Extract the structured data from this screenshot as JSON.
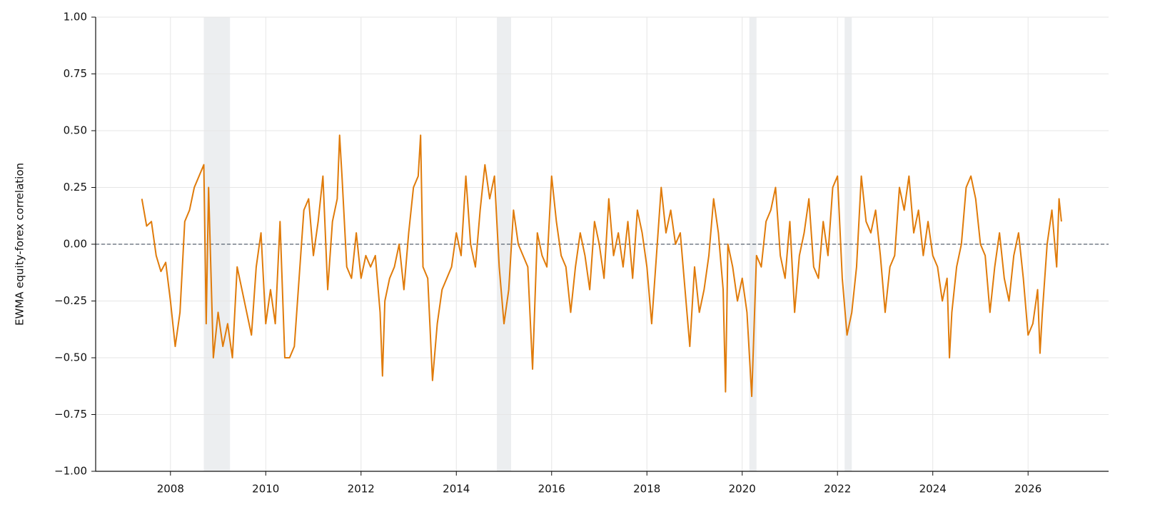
{
  "chart_data": {
    "type": "line",
    "ylabel": "EWMA equity-forex correlation",
    "xlim": [
      2006.43,
      2027.69
    ],
    "ylim": [
      -1,
      1
    ],
    "xticks": [
      2008,
      2010,
      2012,
      2014,
      2016,
      2018,
      2020,
      2022,
      2024,
      2026
    ],
    "yticks": [
      {
        "value": -1,
        "label": "−1.00"
      },
      {
        "value": -0.75,
        "label": "−0.75"
      },
      {
        "value": -0.5,
        "label": "−0.50"
      },
      {
        "value": -0.25,
        "label": "−0.25"
      },
      {
        "value": 0,
        "label": "0.00"
      },
      {
        "value": 0.25,
        "label": "0.25"
      },
      {
        "value": 0.5,
        "label": "0.50"
      },
      {
        "value": 0.75,
        "label": "0.75"
      },
      {
        "value": 1,
        "label": "1.00"
      }
    ],
    "grid": true,
    "reference_line": 0,
    "shaded_spans": [
      [
        2008.7,
        2009.25
      ],
      [
        2014.85,
        2015.15
      ],
      [
        2020.15,
        2020.3
      ],
      [
        2022.15,
        2022.3
      ]
    ],
    "series": [
      {
        "color": "#e07b0a",
        "x": [
          2007.4,
          2007.5,
          2007.6,
          2007.7,
          2007.8,
          2007.9,
          2008.0,
          2008.1,
          2008.2,
          2008.3,
          2008.4,
          2008.5,
          2008.6,
          2008.7,
          2008.75,
          2008.8,
          2008.9,
          2009.0,
          2009.1,
          2009.2,
          2009.3,
          2009.4,
          2009.5,
          2009.6,
          2009.7,
          2009.8,
          2009.9,
          2010.0,
          2010.1,
          2010.2,
          2010.3,
          2010.4,
          2010.5,
          2010.6,
          2010.7,
          2010.8,
          2010.9,
          2011.0,
          2011.1,
          2011.2,
          2011.3,
          2011.4,
          2011.5,
          2011.55,
          2011.6,
          2011.7,
          2011.8,
          2011.9,
          2012.0,
          2012.1,
          2012.2,
          2012.3,
          2012.4,
          2012.45,
          2012.5,
          2012.6,
          2012.7,
          2012.8,
          2012.9,
          2013.0,
          2013.1,
          2013.2,
          2013.25,
          2013.3,
          2013.4,
          2013.5,
          2013.6,
          2013.7,
          2013.8,
          2013.9,
          2014.0,
          2014.1,
          2014.2,
          2014.3,
          2014.4,
          2014.5,
          2014.6,
          2014.7,
          2014.8,
          2014.9,
          2015.0,
          2015.1,
          2015.2,
          2015.3,
          2015.4,
          2015.5,
          2015.6,
          2015.7,
          2015.8,
          2015.9,
          2016.0,
          2016.1,
          2016.2,
          2016.3,
          2016.4,
          2016.5,
          2016.6,
          2016.7,
          2016.8,
          2016.9,
          2017.0,
          2017.1,
          2017.2,
          2017.3,
          2017.4,
          2017.5,
          2017.6,
          2017.7,
          2017.8,
          2017.9,
          2018.0,
          2018.1,
          2018.2,
          2018.3,
          2018.4,
          2018.5,
          2018.6,
          2018.7,
          2018.8,
          2018.9,
          2019.0,
          2019.1,
          2019.2,
          2019.3,
          2019.4,
          2019.5,
          2019.6,
          2019.65,
          2019.7,
          2019.8,
          2019.9,
          2020.0,
          2020.1,
          2020.2,
          2020.3,
          2020.4,
          2020.5,
          2020.6,
          2020.7,
          2020.8,
          2020.9,
          2021.0,
          2021.1,
          2021.2,
          2021.3,
          2021.4,
          2021.5,
          2021.6,
          2021.7,
          2021.8,
          2021.9,
          2022.0,
          2022.1,
          2022.2,
          2022.3,
          2022.4,
          2022.5,
          2022.6,
          2022.7,
          2022.8,
          2022.9,
          2023.0,
          2023.1,
          2023.2,
          2023.3,
          2023.4,
          2023.5,
          2023.6,
          2023.7,
          2023.8,
          2023.9,
          2024.0,
          2024.1,
          2024.2,
          2024.3,
          2024.35,
          2024.4,
          2024.5,
          2024.6,
          2024.7,
          2024.8,
          2024.9,
          2025.0,
          2025.1,
          2025.2,
          2025.3,
          2025.4,
          2025.5,
          2025.6,
          2025.7,
          2025.8,
          2025.9,
          2026.0,
          2026.1,
          2026.2,
          2026.25,
          2026.3,
          2026.4,
          2026.5,
          2026.6,
          2026.65,
          2026.7
        ],
        "values": [
          0.2,
          0.08,
          0.1,
          -0.05,
          -0.12,
          -0.08,
          -0.25,
          -0.45,
          -0.3,
          0.1,
          0.15,
          0.25,
          0.3,
          0.35,
          -0.35,
          0.25,
          -0.5,
          -0.3,
          -0.45,
          -0.35,
          -0.5,
          -0.1,
          -0.2,
          -0.3,
          -0.4,
          -0.1,
          0.05,
          -0.35,
          -0.2,
          -0.35,
          0.1,
          -0.5,
          -0.5,
          -0.45,
          -0.15,
          0.15,
          0.2,
          -0.05,
          0.1,
          0.3,
          -0.2,
          0.1,
          0.2,
          0.48,
          0.3,
          -0.1,
          -0.15,
          0.05,
          -0.15,
          -0.05,
          -0.1,
          -0.05,
          -0.3,
          -0.58,
          -0.25,
          -0.15,
          -0.1,
          0.0,
          -0.2,
          0.05,
          0.25,
          0.3,
          0.48,
          -0.1,
          -0.15,
          -0.6,
          -0.35,
          -0.2,
          -0.15,
          -0.1,
          0.05,
          -0.05,
          0.3,
          0.0,
          -0.1,
          0.15,
          0.35,
          0.2,
          0.3,
          -0.1,
          -0.35,
          -0.2,
          0.15,
          0.0,
          -0.05,
          -0.1,
          -0.55,
          0.05,
          -0.05,
          -0.1,
          0.3,
          0.1,
          -0.05,
          -0.1,
          -0.3,
          -0.1,
          0.05,
          -0.05,
          -0.2,
          0.1,
          0.0,
          -0.15,
          0.2,
          -0.05,
          0.05,
          -0.1,
          0.1,
          -0.15,
          0.15,
          0.05,
          -0.1,
          -0.35,
          -0.05,
          0.25,
          0.05,
          0.15,
          0.0,
          0.05,
          -0.2,
          -0.45,
          -0.1,
          -0.3,
          -0.2,
          -0.05,
          0.2,
          0.05,
          -0.2,
          -0.65,
          0.0,
          -0.1,
          -0.25,
          -0.15,
          -0.3,
          -0.67,
          -0.05,
          -0.1,
          0.1,
          0.15,
          0.25,
          -0.05,
          -0.15,
          0.1,
          -0.3,
          -0.05,
          0.05,
          0.2,
          -0.1,
          -0.15,
          0.1,
          -0.05,
          0.25,
          0.3,
          -0.15,
          -0.4,
          -0.3,
          -0.1,
          0.3,
          0.1,
          0.05,
          0.15,
          -0.05,
          -0.3,
          -0.1,
          -0.05,
          0.25,
          0.15,
          0.3,
          0.05,
          0.15,
          -0.05,
          0.1,
          -0.05,
          -0.1,
          -0.25,
          -0.15,
          -0.5,
          -0.3,
          -0.1,
          0.0,
          0.25,
          0.3,
          0.2,
          0.0,
          -0.05,
          -0.3,
          -0.1,
          0.05,
          -0.15,
          -0.25,
          -0.05,
          0.05,
          -0.15,
          -0.4,
          -0.35,
          -0.2,
          -0.48,
          -0.3,
          0.0,
          0.15,
          -0.1,
          0.2,
          0.1
        ]
      }
    ]
  }
}
